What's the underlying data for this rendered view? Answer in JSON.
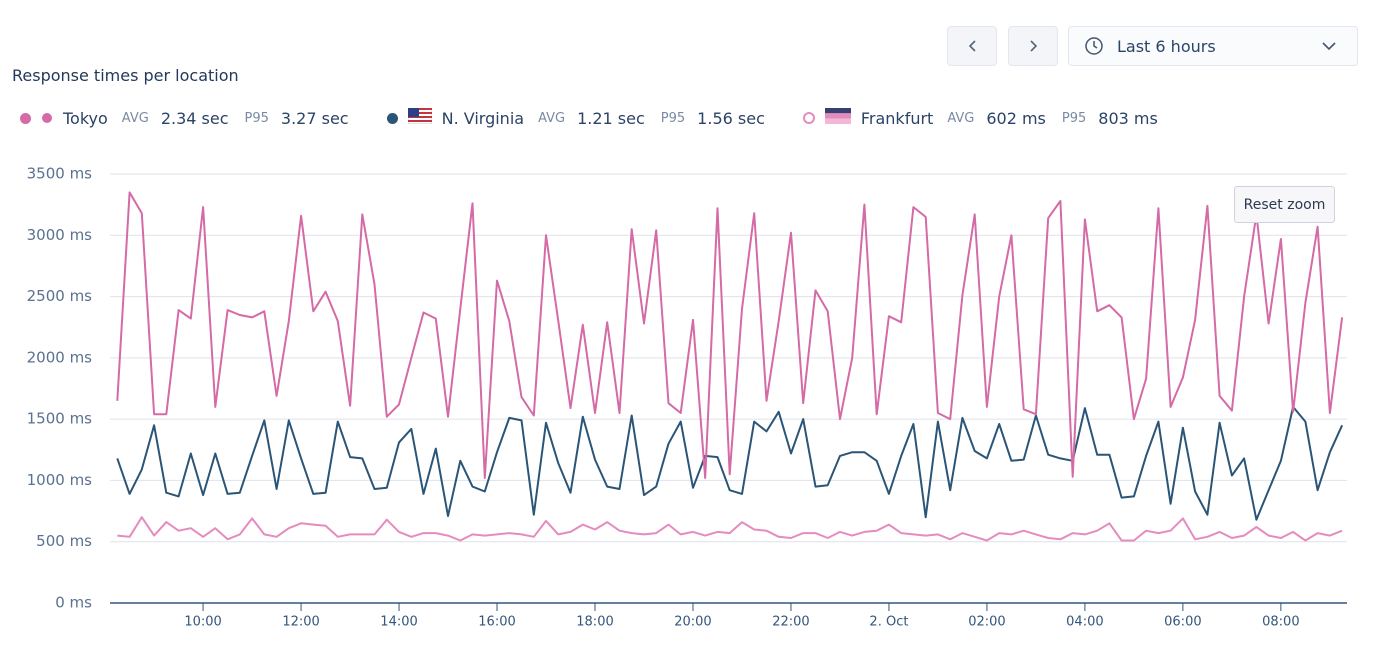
{
  "controls": {
    "time_range": "Last 6 hours",
    "reset_zoom": "Reset zoom"
  },
  "chart_data": {
    "type": "line",
    "title": "Response times per location",
    "stat_labels": {
      "avg": "AVG",
      "p95": "P95"
    },
    "xlim": [
      8.1,
      33.35
    ],
    "xticks": [
      {
        "value": 10,
        "label": "10:00"
      },
      {
        "value": 12,
        "label": "12:00"
      },
      {
        "value": 14,
        "label": "14:00"
      },
      {
        "value": 16,
        "label": "16:00"
      },
      {
        "value": 18,
        "label": "18:00"
      },
      {
        "value": 20,
        "label": "20:00"
      },
      {
        "value": 22,
        "label": "22:00"
      },
      {
        "value": 24,
        "label": "2. Oct"
      },
      {
        "value": 26,
        "label": "02:00"
      },
      {
        "value": 28,
        "label": "04:00"
      },
      {
        "value": 30,
        "label": "06:00"
      },
      {
        "value": 32,
        "label": "08:00"
      }
    ],
    "ylim": [
      0,
      3500
    ],
    "yticks": [
      {
        "value": 0,
        "label": "0 ms"
      },
      {
        "value": 500,
        "label": "500 ms"
      },
      {
        "value": 1000,
        "label": "1000 ms"
      },
      {
        "value": 1500,
        "label": "1500 ms"
      },
      {
        "value": 2000,
        "label": "2000 ms"
      },
      {
        "value": 2500,
        "label": "2500 ms"
      },
      {
        "value": 3000,
        "label": "3000 ms"
      },
      {
        "value": 3500,
        "label": "3500 ms"
      }
    ],
    "grid": true,
    "x": [
      8.25,
      8.5,
      8.75,
      9,
      9.25,
      9.5,
      9.75,
      10,
      10.25,
      10.5,
      10.75,
      11,
      11.25,
      11.5,
      11.75,
      12,
      12.25,
      12.5,
      12.75,
      13,
      13.25,
      13.5,
      13.75,
      14,
      14.25,
      14.5,
      14.75,
      15,
      15.25,
      15.5,
      15.75,
      16,
      16.25,
      16.5,
      16.75,
      17,
      17.25,
      17.5,
      17.75,
      18,
      18.25,
      18.5,
      18.75,
      19,
      19.25,
      19.5,
      19.75,
      20,
      20.25,
      20.5,
      20.75,
      21,
      21.25,
      21.5,
      21.75,
      22,
      22.25,
      22.5,
      22.75,
      23,
      23.25,
      23.5,
      23.75,
      24,
      24.25,
      24.5,
      24.75,
      25,
      25.25,
      25.5,
      25.75,
      26,
      26.25,
      26.5,
      26.75,
      27,
      27.25,
      27.5,
      27.75,
      28,
      28.25,
      28.5,
      28.75,
      29,
      29.25,
      29.5,
      29.75,
      30,
      30.25,
      30.5,
      30.75,
      31,
      31.25,
      31.5,
      31.75,
      32,
      32.25,
      32.5,
      32.75,
      33,
      33.25
    ],
    "series": [
      {
        "name": "Tokyo",
        "color": "#d46aa6",
        "avg": "2.34 sec",
        "p95": "3.27 sec",
        "values": [
          1650,
          3350,
          3180,
          1540,
          1540,
          2390,
          2320,
          3230,
          1600,
          2390,
          2350,
          2330,
          2380,
          1690,
          2300,
          3160,
          2380,
          2540,
          2300,
          1610,
          3170,
          2600,
          1520,
          1620,
          2000,
          2370,
          2320,
          1520,
          2400,
          3260,
          1020,
          2630,
          2300,
          1680,
          1530,
          3000,
          2300,
          1590,
          2270,
          1550,
          2290,
          1550,
          3050,
          2280,
          3040,
          1630,
          1550,
          2310,
          1020,
          3220,
          1050,
          2400,
          3180,
          1650,
          2300,
          3020,
          1630,
          2550,
          2380,
          1500,
          2000,
          3250,
          1540,
          2340,
          2290,
          3230,
          3150,
          1550,
          1500,
          2510,
          3170,
          1600,
          2500,
          3000,
          1580,
          1540,
          3140,
          3280,
          1030,
          3130,
          2380,
          2430,
          2330,
          1500,
          1830,
          3220,
          1600,
          1840,
          2310,
          3240,
          1690,
          1570,
          2500,
          3170,
          2280,
          2970,
          1560,
          2450,
          3070,
          1550,
          2330
        ]
      },
      {
        "name": "N. Virginia",
        "color": "#2b5577",
        "avg": "1.21 sec",
        "p95": "1.56 sec",
        "values": [
          1180,
          890,
          1090,
          1450,
          900,
          870,
          1220,
          880,
          1220,
          890,
          900,
          1200,
          1490,
          930,
          1490,
          1180,
          890,
          900,
          1480,
          1190,
          1180,
          930,
          940,
          1310,
          1420,
          890,
          1260,
          710,
          1160,
          950,
          910,
          1230,
          1510,
          1490,
          720,
          1470,
          1140,
          900,
          1520,
          1170,
          950,
          930,
          1530,
          880,
          950,
          1300,
          1480,
          940,
          1200,
          1190,
          920,
          890,
          1480,
          1400,
          1560,
          1220,
          1500,
          950,
          960,
          1200,
          1230,
          1230,
          1160,
          890,
          1200,
          1460,
          700,
          1480,
          920,
          1510,
          1240,
          1180,
          1460,
          1160,
          1170,
          1530,
          1210,
          1180,
          1160,
          1590,
          1210,
          1210,
          860,
          870,
          1200,
          1480,
          810,
          1430,
          910,
          720,
          1470,
          1040,
          1180,
          680,
          920,
          1160,
          1600,
          1480,
          920,
          1230,
          1450
        ]
      },
      {
        "name": "Frankfurt",
        "color": "#e58cbf",
        "avg": "602 ms",
        "p95": "803 ms",
        "values": [
          550,
          540,
          700,
          550,
          660,
          590,
          610,
          540,
          610,
          520,
          560,
          690,
          560,
          540,
          610,
          650,
          640,
          630,
          540,
          560,
          560,
          560,
          680,
          580,
          540,
          570,
          570,
          550,
          510,
          560,
          550,
          560,
          570,
          560,
          540,
          670,
          560,
          580,
          640,
          600,
          660,
          590,
          570,
          560,
          570,
          640,
          560,
          580,
          550,
          580,
          570,
          660,
          600,
          590,
          540,
          530,
          570,
          570,
          530,
          580,
          550,
          580,
          590,
          640,
          570,
          560,
          550,
          560,
          520,
          570,
          540,
          510,
          570,
          560,
          590,
          560,
          530,
          520,
          570,
          560,
          590,
          650,
          510,
          510,
          590,
          570,
          590,
          690,
          520,
          540,
          580,
          530,
          550,
          620,
          550,
          530,
          580,
          510,
          570,
          550,
          590
        ]
      }
    ]
  }
}
